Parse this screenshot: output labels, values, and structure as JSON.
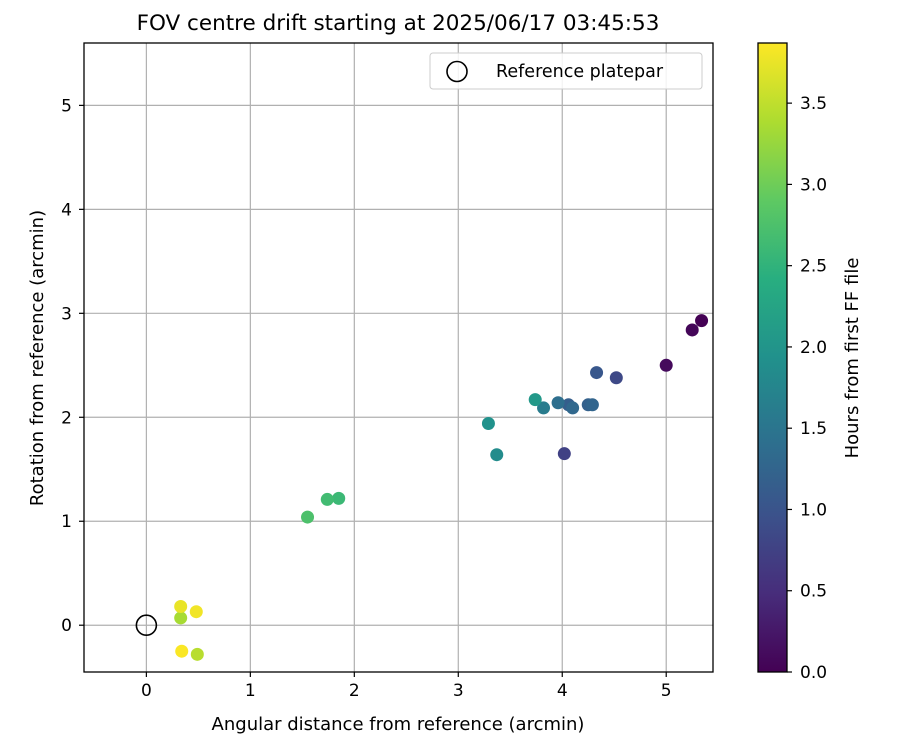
{
  "chart_data": {
    "type": "scatter",
    "title": "FOV centre drift starting at 2025/06/17 03:45:53",
    "xlabel": "Angular distance from reference (arcmin)",
    "ylabel": "Rotation from reference (arcmin)",
    "xlim": [
      -0.6,
      5.45
    ],
    "ylim": [
      -0.45,
      5.6
    ],
    "xticks": [
      0,
      1,
      2,
      3,
      4,
      5
    ],
    "yticks": [
      0,
      1,
      2,
      3,
      4,
      5
    ],
    "grid": true,
    "legend": {
      "placement": "top-right",
      "entries": [
        "Reference platepar"
      ]
    },
    "reference_point": {
      "name": "Reference platepar",
      "x": 0,
      "y": 0
    },
    "colorbar": {
      "label": "Hours from first FF file",
      "colormap": "viridis",
      "range": [
        0,
        3.87
      ],
      "ticks": [
        0.0,
        0.5,
        1.0,
        1.5,
        2.0,
        2.5,
        3.0,
        3.5
      ],
      "tick_labels": [
        "0.0",
        "0.5",
        "1.0",
        "1.5",
        "2.0",
        "2.5",
        "3.0",
        "3.5"
      ]
    },
    "points": [
      {
        "x": 5.34,
        "y": 2.93,
        "hours": 0.0
      },
      {
        "x": 5.25,
        "y": 2.84,
        "hours": 0.05
      },
      {
        "x": 5.0,
        "y": 2.5,
        "hours": 0.1
      },
      {
        "x": 4.02,
        "y": 1.65,
        "hours": 0.75
      },
      {
        "x": 4.52,
        "y": 2.38,
        "hours": 0.85
      },
      {
        "x": 4.33,
        "y": 2.43,
        "hours": 1.05
      },
      {
        "x": 4.06,
        "y": 2.12,
        "hours": 1.15
      },
      {
        "x": 4.25,
        "y": 2.12,
        "hours": 1.2
      },
      {
        "x": 4.29,
        "y": 2.12,
        "hours": 1.25
      },
      {
        "x": 4.1,
        "y": 2.09,
        "hours": 1.3
      },
      {
        "x": 3.96,
        "y": 2.14,
        "hours": 1.4
      },
      {
        "x": 3.82,
        "y": 2.09,
        "hours": 1.6
      },
      {
        "x": 3.37,
        "y": 1.64,
        "hours": 1.85
      },
      {
        "x": 3.29,
        "y": 1.94,
        "hours": 1.95
      },
      {
        "x": 3.74,
        "y": 2.17,
        "hours": 2.05
      },
      {
        "x": 1.85,
        "y": 1.22,
        "hours": 2.6
      },
      {
        "x": 1.74,
        "y": 1.21,
        "hours": 2.65
      },
      {
        "x": 1.55,
        "y": 1.04,
        "hours": 2.75
      },
      {
        "x": 0.33,
        "y": 0.07,
        "hours": 3.35
      },
      {
        "x": 0.49,
        "y": -0.28,
        "hours": 3.45
      },
      {
        "x": 0.33,
        "y": 0.18,
        "hours": 3.75
      },
      {
        "x": 0.48,
        "y": 0.13,
        "hours": 3.8
      },
      {
        "x": 0.34,
        "y": -0.25,
        "hours": 3.85
      }
    ]
  }
}
